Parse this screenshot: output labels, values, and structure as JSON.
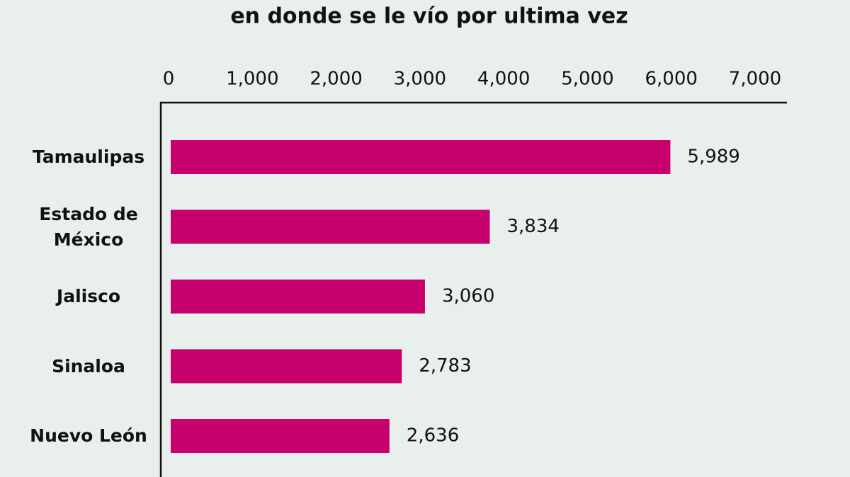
{
  "chart_data": {
    "type": "bar",
    "orientation": "horizontal",
    "title": "en donde se le vío por ultima vez",
    "categories": [
      "Tamaulipas",
      "Estado de México",
      "Jalisco",
      "Sinaloa",
      "Nuevo León"
    ],
    "values": [
      5989,
      3834,
      3060,
      2783,
      2636
    ],
    "value_labels": [
      "5,989",
      "3,834",
      "3,060",
      "2,783",
      "2,636"
    ],
    "color": "#c6006c",
    "xlim": [
      0,
      7000
    ],
    "xticks": [
      0,
      {
        "value": 1000,
        "label": "1,000"
      },
      {
        "value": 2000,
        "label": "2,000"
      },
      {
        "value": 3000,
        "label": "3,000"
      },
      {
        "value": 4000,
        "label": "4,000"
      },
      {
        "value": 5000,
        "label": "5,000"
      },
      {
        "value": 6000,
        "label": "6,000"
      },
      {
        "value": 7000,
        "label": "7,000"
      }
    ],
    "grid": false
  }
}
